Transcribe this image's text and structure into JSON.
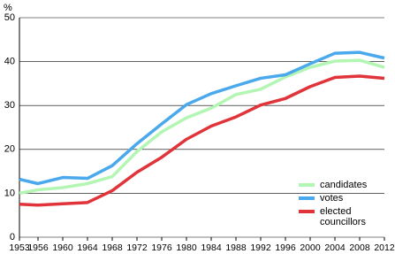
{
  "chart_data": {
    "type": "line",
    "y_label": "%",
    "x": [
      1953,
      1956,
      1960,
      1964,
      1968,
      1972,
      1976,
      1980,
      1984,
      1988,
      1992,
      1996,
      2000,
      2004,
      2008,
      2012
    ],
    "xlim": [
      1953,
      2012
    ],
    "xticks": [
      1953,
      1956,
      1960,
      1964,
      1968,
      1972,
      1976,
      1980,
      1984,
      1988,
      1992,
      1996,
      2000,
      2004,
      2008,
      2012
    ],
    "ylim": [
      0,
      50
    ],
    "yticks": [
      0,
      10,
      20,
      30,
      40,
      50
    ],
    "grid": true,
    "series": [
      {
        "name": "candidates",
        "color": "#b3f5b3",
        "values": [
          10,
          10.8,
          11.3,
          12.2,
          13.8,
          19.5,
          24,
          27.2,
          29.4,
          32.5,
          33.7,
          36.5,
          38.7,
          40.1,
          40.3,
          38.7
        ]
      },
      {
        "name": "votes",
        "color": "#4aa8ec",
        "values": [
          13.2,
          12.2,
          13.6,
          13.4,
          16.3,
          21.3,
          25.8,
          30.2,
          32.7,
          34.5,
          36.2,
          37,
          39.5,
          41.9,
          42.1,
          40.8
        ]
      },
      {
        "name": "elected councillors",
        "color": "#e0333a",
        "values": [
          7.5,
          7.3,
          7.6,
          7.9,
          10.6,
          14.8,
          18.2,
          22.3,
          25.3,
          27.4,
          30.1,
          31.6,
          34.3,
          36.4,
          36.7,
          36.2
        ]
      }
    ]
  }
}
